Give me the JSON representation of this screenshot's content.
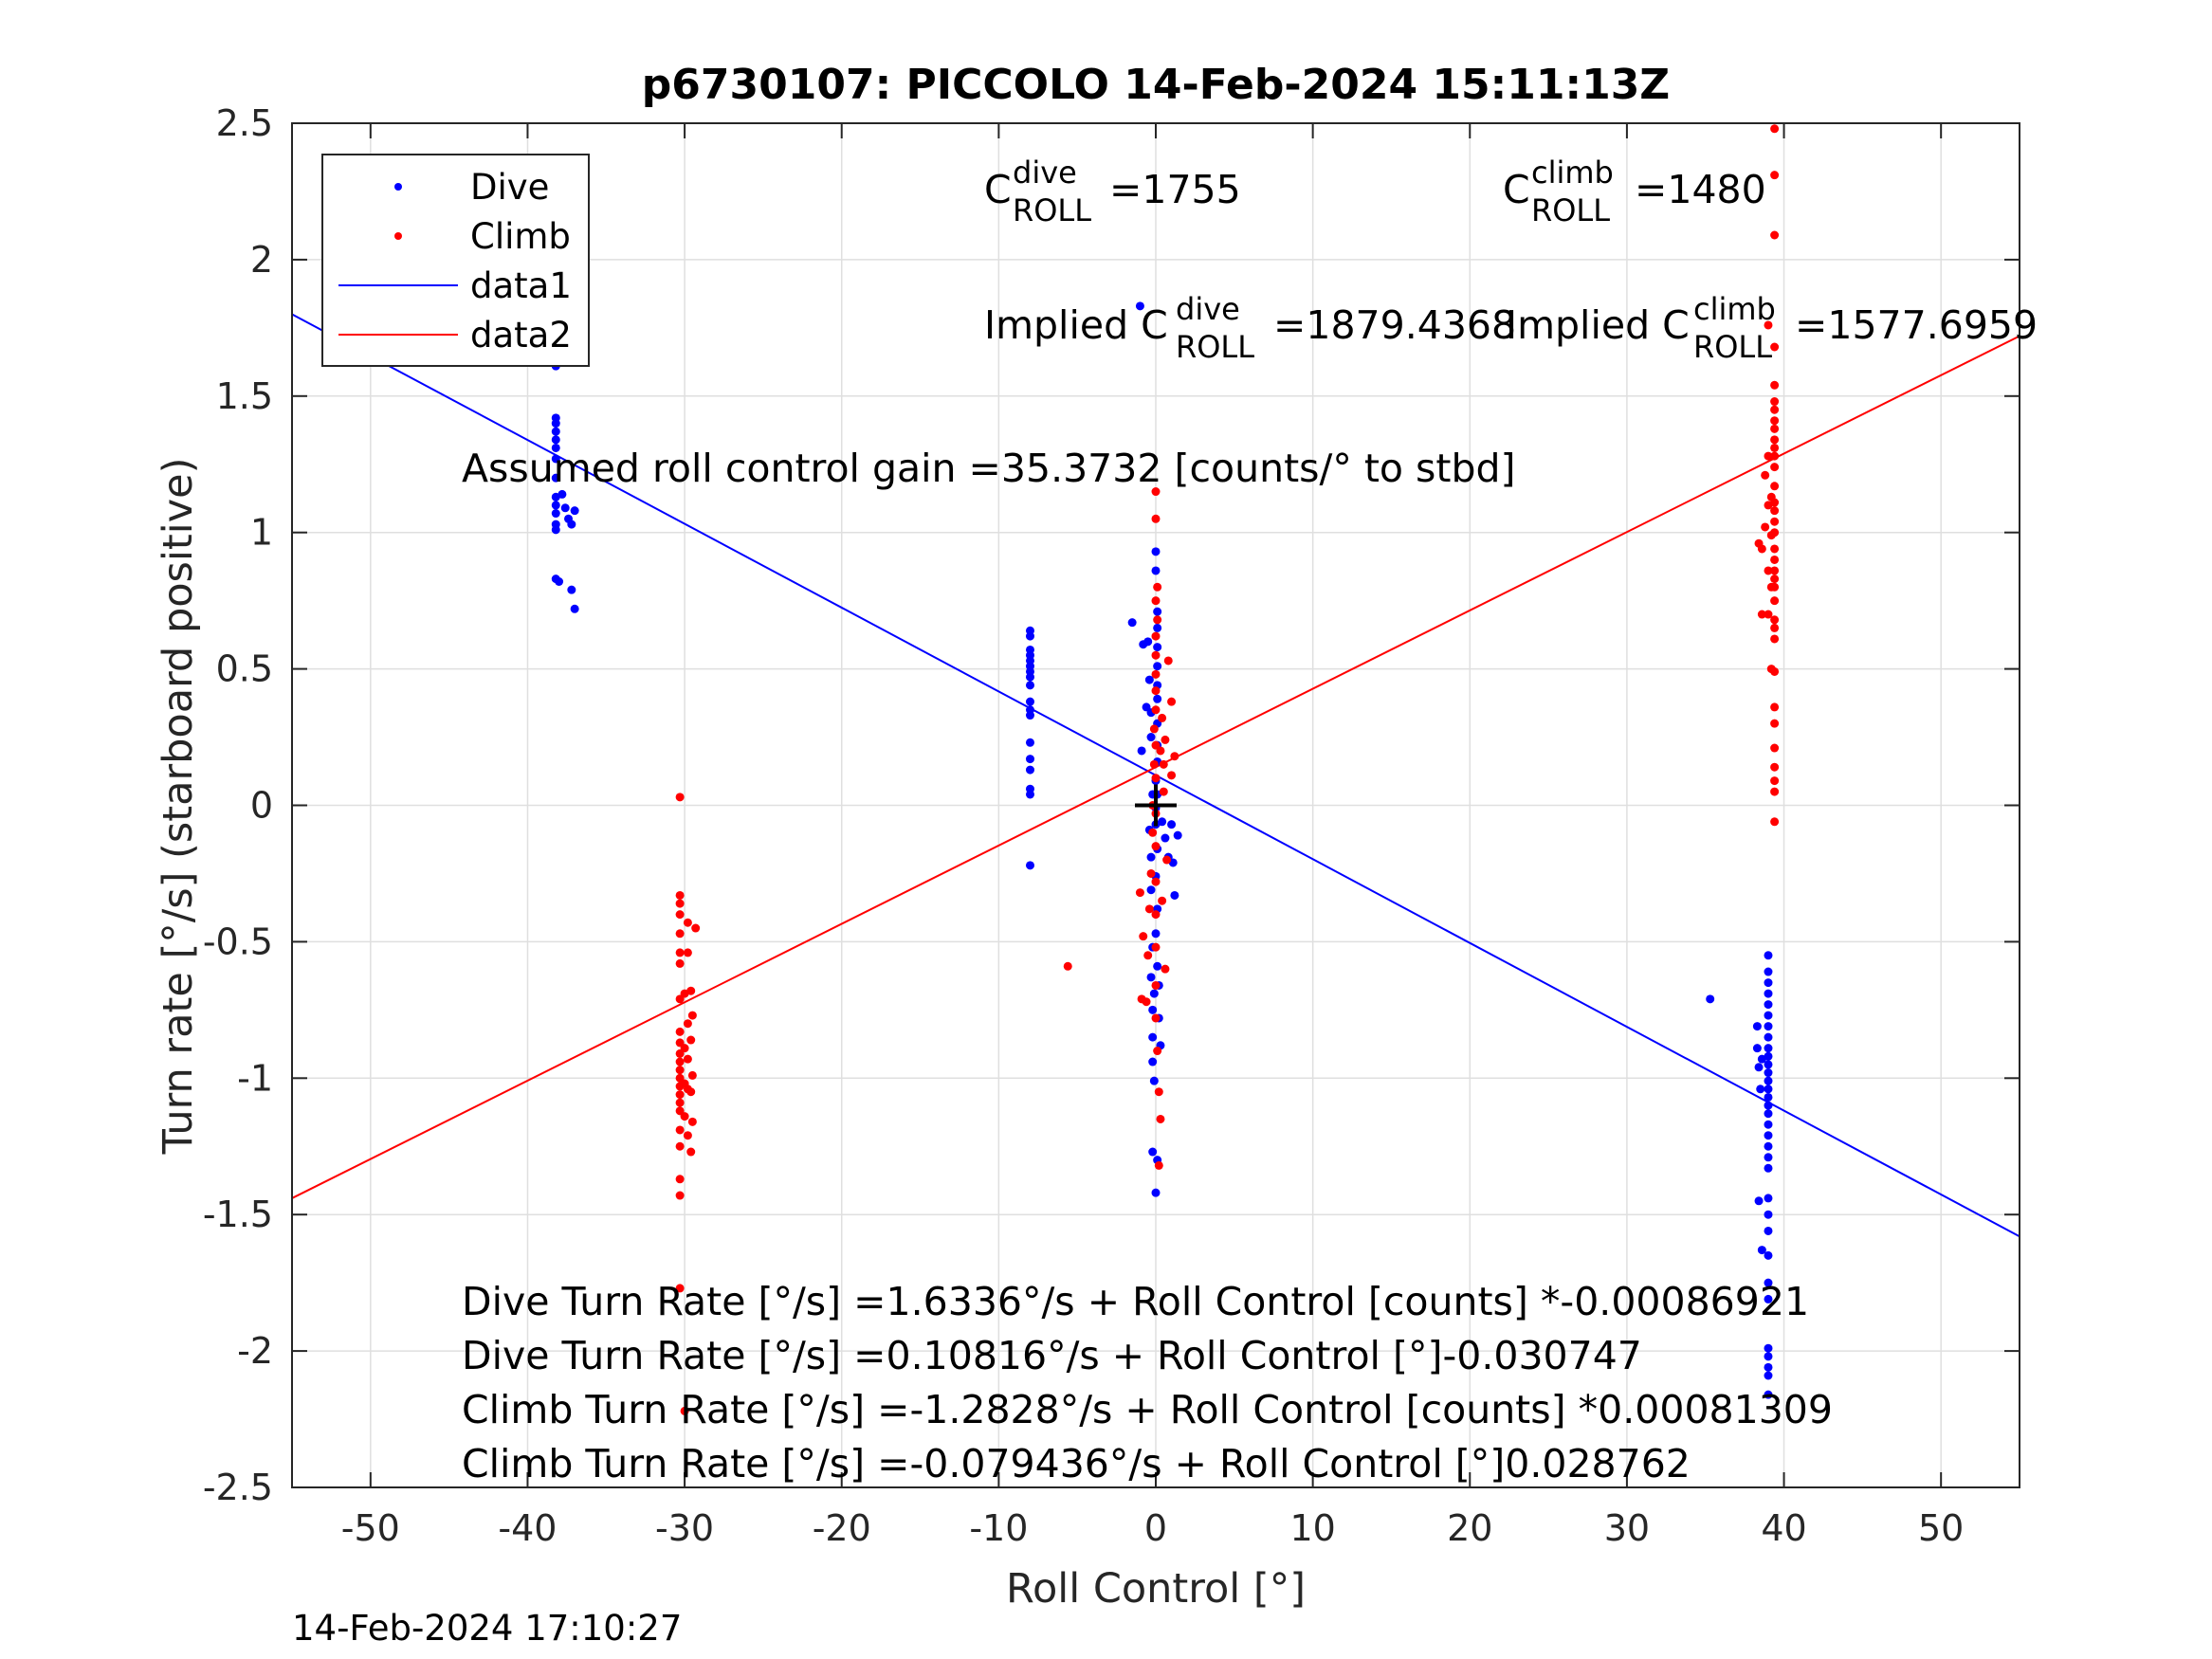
{
  "chart_data": {
    "type": "scatter",
    "title": "p6730107: PICCOLO 14-Feb-2024 15:11:13Z",
    "xlabel": "Roll Control [°]",
    "ylabel": "Turn rate [°/s] (starboard positive)",
    "xlim": [
      -55,
      55
    ],
    "ylim": [
      -2.5,
      2.5
    ],
    "xticks": [
      -50,
      -40,
      -30,
      -20,
      -10,
      0,
      10,
      20,
      30,
      40,
      50
    ],
    "yticks": [
      -2.5,
      -2,
      -1.5,
      -1,
      -0.5,
      0,
      0.5,
      1,
      1.5,
      2,
      2.5
    ],
    "xtick_labels": [
      "-50",
      "-40",
      "-30",
      "-20",
      "-10",
      "0",
      "10",
      "20",
      "30",
      "40",
      "50"
    ],
    "ytick_labels": [
      "-2.5",
      "-2",
      "-1.5",
      "-1",
      "-0.5",
      "0",
      "0.5",
      "1",
      "1.5",
      "2",
      "2.5"
    ],
    "grid": true,
    "legend_position": "top-left",
    "legend": [
      "Dive",
      "Climb",
      "data1",
      "data2"
    ],
    "colors": {
      "dive": "#0000ff",
      "climb": "#ff0000",
      "axes": "#262626",
      "grid": "#dfdfdf",
      "cross": "#000000"
    },
    "cross_marker": {
      "x": 0,
      "y": 0
    },
    "series": [
      {
        "name": "Dive",
        "kind": "points",
        "points": [
          [
            -38.2,
            2.03
          ],
          [
            -38.2,
            1.8
          ],
          [
            -38.2,
            1.78
          ],
          [
            -38.2,
            1.73
          ],
          [
            -38.2,
            1.61
          ],
          [
            -38.2,
            1.42
          ],
          [
            -38.2,
            1.4
          ],
          [
            -38.2,
            1.37
          ],
          [
            -38.2,
            1.34
          ],
          [
            -38.2,
            1.31
          ],
          [
            -38.2,
            1.27
          ],
          [
            -38.2,
            1.2
          ],
          [
            -38.2,
            1.13
          ],
          [
            -38.2,
            1.1
          ],
          [
            -38.2,
            1.07
          ],
          [
            -38.2,
            1.03
          ],
          [
            -38.2,
            1.01
          ],
          [
            -38.2,
            0.83
          ],
          [
            -38.0,
            0.82
          ],
          [
            -37.8,
            1.14
          ],
          [
            -37.6,
            1.09
          ],
          [
            -37.4,
            1.05
          ],
          [
            -37.2,
            1.03
          ],
          [
            -37.2,
            0.79
          ],
          [
            -37.0,
            1.08
          ],
          [
            -37.0,
            0.72
          ],
          [
            -8.0,
            0.64
          ],
          [
            -8.0,
            0.62
          ],
          [
            -8.0,
            0.57
          ],
          [
            -8.0,
            0.55
          ],
          [
            -8.0,
            0.53
          ],
          [
            -8.0,
            0.51
          ],
          [
            -8.0,
            0.49
          ],
          [
            -8.0,
            0.47
          ],
          [
            -8.0,
            0.44
          ],
          [
            -8.0,
            0.38
          ],
          [
            -8.0,
            0.35
          ],
          [
            -8.0,
            0.33
          ],
          [
            -8.0,
            0.23
          ],
          [
            -8.0,
            0.17
          ],
          [
            -8.0,
            0.13
          ],
          [
            -8.0,
            0.06
          ],
          [
            -8.0,
            0.04
          ],
          [
            -8.0,
            -0.22
          ],
          [
            -1.5,
            0.67
          ],
          [
            -1.0,
            1.83
          ],
          [
            -0.8,
            0.59
          ],
          [
            -0.6,
            0.36
          ],
          [
            -0.9,
            0.2
          ],
          [
            -0.5,
            0.6
          ],
          [
            -0.4,
            0.46
          ],
          [
            -0.3,
            0.34
          ],
          [
            -0.3,
            0.25
          ],
          [
            -0.2,
            0.04
          ],
          [
            -0.4,
            -0.09
          ],
          [
            -0.3,
            -0.19
          ],
          [
            -0.3,
            -0.31
          ],
          [
            -0.2,
            -0.52
          ],
          [
            -0.3,
            -0.63
          ],
          [
            -0.1,
            -0.69
          ],
          [
            -0.2,
            -0.75
          ],
          [
            -0.2,
            -0.85
          ],
          [
            -0.2,
            -0.94
          ],
          [
            -0.1,
            -1.01
          ],
          [
            -0.2,
            -1.27
          ],
          [
            0.1,
            -1.3
          ],
          [
            0.0,
            -1.42
          ],
          [
            0.0,
            0.93
          ],
          [
            0.0,
            0.86
          ],
          [
            0.1,
            0.71
          ],
          [
            0.1,
            0.65
          ],
          [
            0.1,
            0.58
          ],
          [
            0.1,
            0.51
          ],
          [
            0.1,
            0.44
          ],
          [
            0.1,
            0.39
          ],
          [
            0.1,
            0.3
          ],
          [
            0.1,
            0.22
          ],
          [
            0.1,
            0.16
          ],
          [
            0.0,
            0.09
          ],
          [
            0.1,
            0.04
          ],
          [
            0.0,
            -0.01
          ],
          [
            0.0,
            -0.07
          ],
          [
            0.1,
            -0.16
          ],
          [
            0.0,
            -0.26
          ],
          [
            0.1,
            -0.38
          ],
          [
            0.0,
            -0.47
          ],
          [
            0.1,
            -0.59
          ],
          [
            0.2,
            -0.66
          ],
          [
            0.2,
            -0.78
          ],
          [
            0.3,
            -0.88
          ],
          [
            0.4,
            -0.06
          ],
          [
            0.6,
            -0.12
          ],
          [
            0.8,
            -0.19
          ],
          [
            1.0,
            -0.07
          ],
          [
            1.1,
            -0.21
          ],
          [
            1.2,
            -0.33
          ],
          [
            1.4,
            -0.11
          ],
          [
            35.3,
            -0.71
          ],
          [
            38.3,
            -0.81
          ],
          [
            38.3,
            -0.89
          ],
          [
            38.4,
            -0.96
          ],
          [
            38.4,
            -1.45
          ],
          [
            38.5,
            -1.04
          ],
          [
            38.6,
            -0.93
          ],
          [
            38.6,
            -1.63
          ],
          [
            39.0,
            -0.55
          ],
          [
            39.0,
            -0.61
          ],
          [
            39.0,
            -0.65
          ],
          [
            39.0,
            -0.69
          ],
          [
            39.0,
            -0.73
          ],
          [
            39.0,
            -0.77
          ],
          [
            39.0,
            -0.81
          ],
          [
            39.0,
            -0.85
          ],
          [
            39.0,
            -0.89
          ],
          [
            39.0,
            -0.92
          ],
          [
            39.0,
            -0.95
          ],
          [
            39.0,
            -0.98
          ],
          [
            39.0,
            -1.01
          ],
          [
            39.0,
            -1.04
          ],
          [
            39.0,
            -1.07
          ],
          [
            39.0,
            -1.1
          ],
          [
            39.0,
            -1.13
          ],
          [
            39.0,
            -1.17
          ],
          [
            39.0,
            -1.21
          ],
          [
            39.0,
            -1.25
          ],
          [
            39.0,
            -1.29
          ],
          [
            39.0,
            -1.33
          ],
          [
            39.0,
            -1.44
          ],
          [
            39.0,
            -1.5
          ],
          [
            39.0,
            -1.56
          ],
          [
            39.0,
            -1.65
          ],
          [
            39.0,
            -1.75
          ],
          [
            39.0,
            -1.81
          ],
          [
            39.0,
            -1.99
          ],
          [
            39.0,
            -2.02
          ],
          [
            39.0,
            -2.06
          ],
          [
            39.0,
            -2.09
          ],
          [
            39.0,
            -2.16
          ]
        ]
      },
      {
        "name": "Climb",
        "kind": "points",
        "points": [
          [
            -30.3,
            0.03
          ],
          [
            -30.3,
            -0.33
          ],
          [
            -30.3,
            -0.36
          ],
          [
            -30.3,
            -0.4
          ],
          [
            -30.3,
            -0.47
          ],
          [
            -30.3,
            -0.54
          ],
          [
            -30.3,
            -0.58
          ],
          [
            -30.3,
            -0.71
          ],
          [
            -30.3,
            -0.83
          ],
          [
            -30.3,
            -0.87
          ],
          [
            -30.3,
            -0.91
          ],
          [
            -30.3,
            -0.94
          ],
          [
            -30.3,
            -0.97
          ],
          [
            -30.3,
            -1.0
          ],
          [
            -30.3,
            -1.03
          ],
          [
            -30.3,
            -1.06
          ],
          [
            -30.3,
            -1.09
          ],
          [
            -30.3,
            -1.12
          ],
          [
            -30.3,
            -1.19
          ],
          [
            -30.3,
            -1.25
          ],
          [
            -30.3,
            -1.37
          ],
          [
            -30.3,
            -1.43
          ],
          [
            -30.3,
            -1.77
          ],
          [
            -30.0,
            -2.22
          ],
          [
            -30.0,
            -0.69
          ],
          [
            -30.0,
            -0.89
          ],
          [
            -30.0,
            -1.02
          ],
          [
            -30.0,
            -1.14
          ],
          [
            -29.8,
            -0.43
          ],
          [
            -29.8,
            -0.54
          ],
          [
            -29.8,
            -0.8
          ],
          [
            -29.8,
            -0.93
          ],
          [
            -29.8,
            -1.04
          ],
          [
            -29.8,
            -1.21
          ],
          [
            -29.6,
            -0.68
          ],
          [
            -29.6,
            -0.86
          ],
          [
            -29.6,
            -1.05
          ],
          [
            -29.6,
            -1.27
          ],
          [
            -29.3,
            -0.45
          ],
          [
            -29.5,
            -0.77
          ],
          [
            -29.5,
            -0.99
          ],
          [
            -29.5,
            -1.16
          ],
          [
            -5.6,
            -0.59
          ],
          [
            -1.0,
            -0.32
          ],
          [
            -0.8,
            -0.48
          ],
          [
            -0.9,
            -0.71
          ],
          [
            -0.6,
            -0.72
          ],
          [
            -0.5,
            -0.55
          ],
          [
            -0.4,
            -0.38
          ],
          [
            -0.3,
            -0.25
          ],
          [
            -0.2,
            -0.1
          ],
          [
            -0.2,
            0.0
          ],
          [
            -0.1,
            0.15
          ],
          [
            -0.1,
            0.28
          ],
          [
            0.0,
            0.42
          ],
          [
            0.0,
            0.55
          ],
          [
            0.1,
            0.68
          ],
          [
            0.1,
            0.8
          ],
          [
            0.0,
            1.15
          ],
          [
            0.0,
            1.05
          ],
          [
            0.0,
            0.75
          ],
          [
            0.0,
            0.62
          ],
          [
            0.0,
            0.48
          ],
          [
            0.0,
            0.35
          ],
          [
            0.0,
            0.22
          ],
          [
            0.0,
            0.1
          ],
          [
            0.0,
            -0.03
          ],
          [
            0.0,
            -0.15
          ],
          [
            0.0,
            -0.28
          ],
          [
            0.0,
            -0.4
          ],
          [
            0.0,
            -0.52
          ],
          [
            0.0,
            -0.66
          ],
          [
            0.0,
            -0.78
          ],
          [
            0.1,
            -0.9
          ],
          [
            0.2,
            -1.05
          ],
          [
            0.3,
            -1.15
          ],
          [
            0.2,
            -1.32
          ],
          [
            0.3,
            0.2
          ],
          [
            0.4,
            0.32
          ],
          [
            0.5,
            0.15
          ],
          [
            0.5,
            0.05
          ],
          [
            0.6,
            0.24
          ],
          [
            0.8,
            0.53
          ],
          [
            1.0,
            0.38
          ],
          [
            1.0,
            0.11
          ],
          [
            1.2,
            0.18
          ],
          [
            0.7,
            -0.2
          ],
          [
            0.4,
            -0.35
          ],
          [
            0.6,
            -0.6
          ],
          [
            38.4,
            0.96
          ],
          [
            38.6,
            0.94
          ],
          [
            38.6,
            0.7
          ],
          [
            38.8,
            1.02
          ],
          [
            38.8,
            1.21
          ],
          [
            39.0,
            1.76
          ],
          [
            39.0,
            0.7
          ],
          [
            39.0,
            0.86
          ],
          [
            39.2,
            1.13
          ],
          [
            39.2,
            0.99
          ],
          [
            39.2,
            0.8
          ],
          [
            39.4,
            2.48
          ],
          [
            39.4,
            2.31
          ],
          [
            39.4,
            2.09
          ],
          [
            39.4,
            1.68
          ],
          [
            39.4,
            1.54
          ],
          [
            39.4,
            1.48
          ],
          [
            39.4,
            1.45
          ],
          [
            39.4,
            1.41
          ],
          [
            39.4,
            1.38
          ],
          [
            39.4,
            1.34
          ],
          [
            39.4,
            1.31
          ],
          [
            39.4,
            1.28
          ],
          [
            39.4,
            1.24
          ],
          [
            39.4,
            1.17
          ],
          [
            39.4,
            1.11
          ],
          [
            39.4,
            1.08
          ],
          [
            39.4,
            1.04
          ],
          [
            39.4,
            1.0
          ],
          [
            39.4,
            0.94
          ],
          [
            39.4,
            0.9
          ],
          [
            39.4,
            0.86
          ],
          [
            39.4,
            0.83
          ],
          [
            39.4,
            0.8
          ],
          [
            39.4,
            0.75
          ],
          [
            39.4,
            0.68
          ],
          [
            39.4,
            0.65
          ],
          [
            39.4,
            0.61
          ],
          [
            39.4,
            0.49
          ],
          [
            39.4,
            0.36
          ],
          [
            39.4,
            0.3
          ],
          [
            39.4,
            0.21
          ],
          [
            39.4,
            0.14
          ],
          [
            39.4,
            0.09
          ],
          [
            39.4,
            0.05
          ],
          [
            39.4,
            -0.06
          ],
          [
            39.2,
            0.5
          ],
          [
            39.0,
            1.28
          ],
          [
            39.0,
            1.1
          ]
        ]
      },
      {
        "name": "data1",
        "kind": "line",
        "x": [
          -55,
          55
        ],
        "y": [
          1.8,
          -1.58
        ]
      },
      {
        "name": "data2",
        "kind": "line",
        "x": [
          -55,
          55
        ],
        "y": [
          -1.44,
          1.72
        ]
      }
    ]
  },
  "annotations": {
    "cdive_base": "C",
    "cdive_sup": "dive",
    "cdive_sub": "ROLL",
    "cdive_val": "=1755",
    "cclimb_base": "C",
    "cclimb_sup": "climb",
    "cclimb_sub": "ROLL",
    "cclimb_val": "=1480",
    "idive_pre": "Implied C",
    "idive_sup": "dive",
    "idive_sub": "ROLL",
    "idive_val": "=1879.4368",
    "iclimb_pre": "Implied C",
    "iclimb_sup": "climb",
    "iclimb_sub": "ROLL",
    "iclimb_val": "=1577.6959",
    "gain": "Assumed roll control gain =35.3732 [counts/° to stbd]",
    "fit1": "Dive Turn Rate [°/s] =1.6336°/s + Roll Control [counts] *-0.00086921",
    "fit2": "Dive Turn Rate [°/s] =0.10816°/s + Roll Control [°]-0.030747",
    "fit3": "Climb Turn Rate [°/s] =-1.2828°/s + Roll Control [counts] *0.00081309",
    "fit4": "Climb Turn Rate [°/s] =-0.079436°/s + Roll Control [°]0.028762"
  },
  "timestamp": "14-Feb-2024 17:10:27"
}
